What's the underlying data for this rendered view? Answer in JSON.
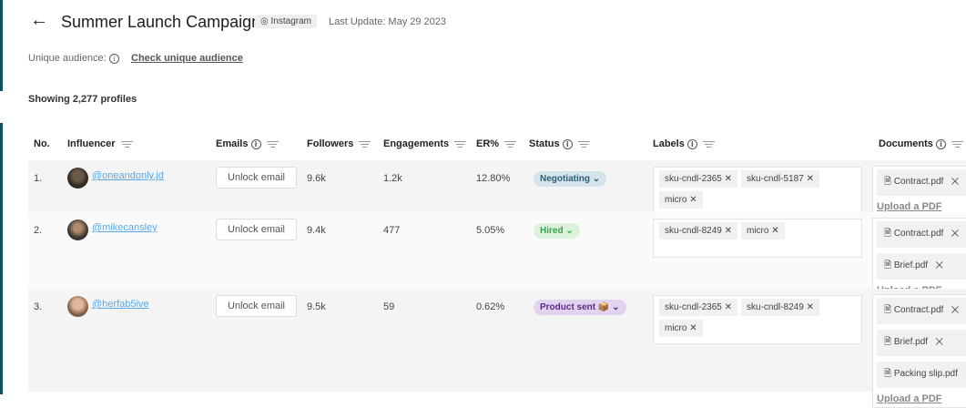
{
  "header": {
    "title": "Summer Launch Campaign",
    "platform": "Instagram",
    "last_update": "Last Update: May 29 2023"
  },
  "audience": {
    "label": "Unique audience:",
    "link": "Check unique audience"
  },
  "showing": "Showing 2,277 profiles",
  "columns": [
    "No.",
    "Influencer",
    "Emails",
    "Followers",
    "Engagements",
    "ER%",
    "Status",
    "Labels",
    "Documents"
  ],
  "unlock_label": "Unlock email",
  "upload_label": "Upload a PDF",
  "rows": [
    {
      "no": "1.",
      "handle": "@oneandonly.jd",
      "followers": "9.6k",
      "engagements": "1.2k",
      "er": "12.80%",
      "status": "Negotiating",
      "labels": [
        "sku-cndl-2365",
        "sku-cndl-5187",
        "micro"
      ],
      "documents": [
        "Contract.pdf"
      ]
    },
    {
      "no": "2.",
      "handle": "@mikecansley",
      "followers": "9.4k",
      "engagements": "477",
      "er": "5.05%",
      "status": "Hired",
      "labels": [
        "sku-cndl-8249",
        "micro"
      ],
      "documents": [
        "Contract.pdf",
        "Brief.pdf"
      ]
    },
    {
      "no": "3.",
      "handle": "@herfab5ive",
      "followers": "9.5k",
      "engagements": "59",
      "er": "0.62%",
      "status": "Product sent",
      "labels": [
        "sku-cndl-2365",
        "sku-cndl-8249",
        "micro"
      ],
      "documents": [
        "Contract.pdf",
        "Brief.pdf",
        "Packing slip.pdf"
      ]
    }
  ],
  "colors": {
    "negotiating_bg": "#d5e3ea",
    "negotiating_fg": "#2d5f75",
    "hired_bg": "#dcf2dc",
    "hired_fg": "#3fa34d",
    "product_bg": "#e2d3ef",
    "product_fg": "#5b2a86",
    "accent": "#134e63"
  }
}
